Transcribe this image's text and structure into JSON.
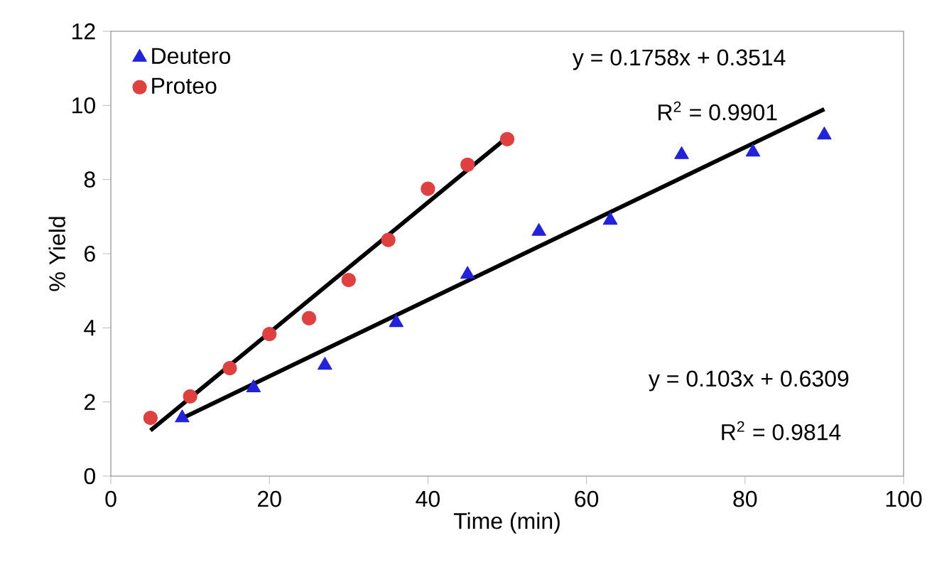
{
  "chart_data": {
    "type": "scatter",
    "xlabel": "Time (min)",
    "ylabel": "% Yield",
    "xlim": [
      0,
      100
    ],
    "ylim": [
      0,
      12
    ],
    "xticks": [
      0,
      20,
      40,
      60,
      80,
      100
    ],
    "yticks": [
      0,
      2,
      4,
      6,
      8,
      10,
      12
    ],
    "legend": "top left",
    "grid": false,
    "series": [
      {
        "name": "Deutero",
        "marker": "triangle",
        "color": "#2222dd",
        "x": [
          9,
          18,
          27,
          36,
          45,
          54,
          63,
          72,
          81,
          90
        ],
        "values": [
          1.57,
          2.38,
          2.99,
          4.14,
          5.44,
          6.6,
          6.9,
          8.67,
          8.74,
          9.2
        ]
      },
      {
        "name": "Proteo",
        "marker": "circle",
        "color": "#e04040",
        "x": [
          5,
          10,
          15,
          20,
          25,
          30,
          35,
          40,
          45,
          50
        ],
        "values": [
          1.57,
          2.15,
          2.91,
          3.83,
          4.26,
          5.29,
          6.37,
          7.75,
          8.4,
          9.09
        ]
      },
      {
        "type": "line",
        "marker": "none",
        "color": "#000000",
        "x": [
          5,
          50
        ],
        "values": [
          1.23,
          9.14
        ]
      },
      {
        "type": "line",
        "marker": "none",
        "color": "#000000",
        "x": [
          9,
          90
        ],
        "values": [
          1.56,
          9.9
        ]
      }
    ],
    "annotations": [
      "y = 0.1758x + 0.3514",
      "R$^{2}$ = 0.9901",
      "y = 0.103x + 0.6309",
      "R$^{2}$ = 0.9814"
    ]
  }
}
